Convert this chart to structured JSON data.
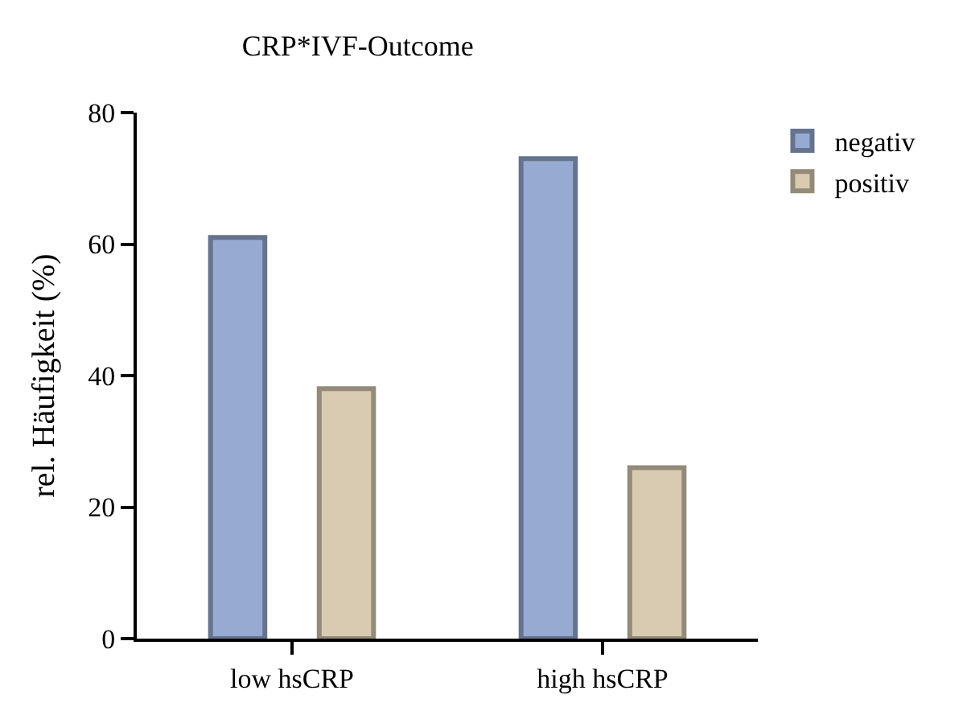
{
  "chart_data": {
    "type": "bar",
    "title": "CRP*IVF-Outcome",
    "ylabel": "rel. Häufigkeit (%)",
    "categories": [
      "low hsCRP",
      "high hsCRP"
    ],
    "series": [
      {
        "name": "negativ",
        "color": "#96aad2",
        "values": [
          61,
          73
        ]
      },
      {
        "name": "positiv",
        "color": "#d9cbb2",
        "values": [
          38,
          26
        ]
      }
    ],
    "ylim": [
      0,
      80
    ],
    "yticks": [
      0,
      20,
      40,
      60,
      80
    ],
    "legend": "top right"
  }
}
